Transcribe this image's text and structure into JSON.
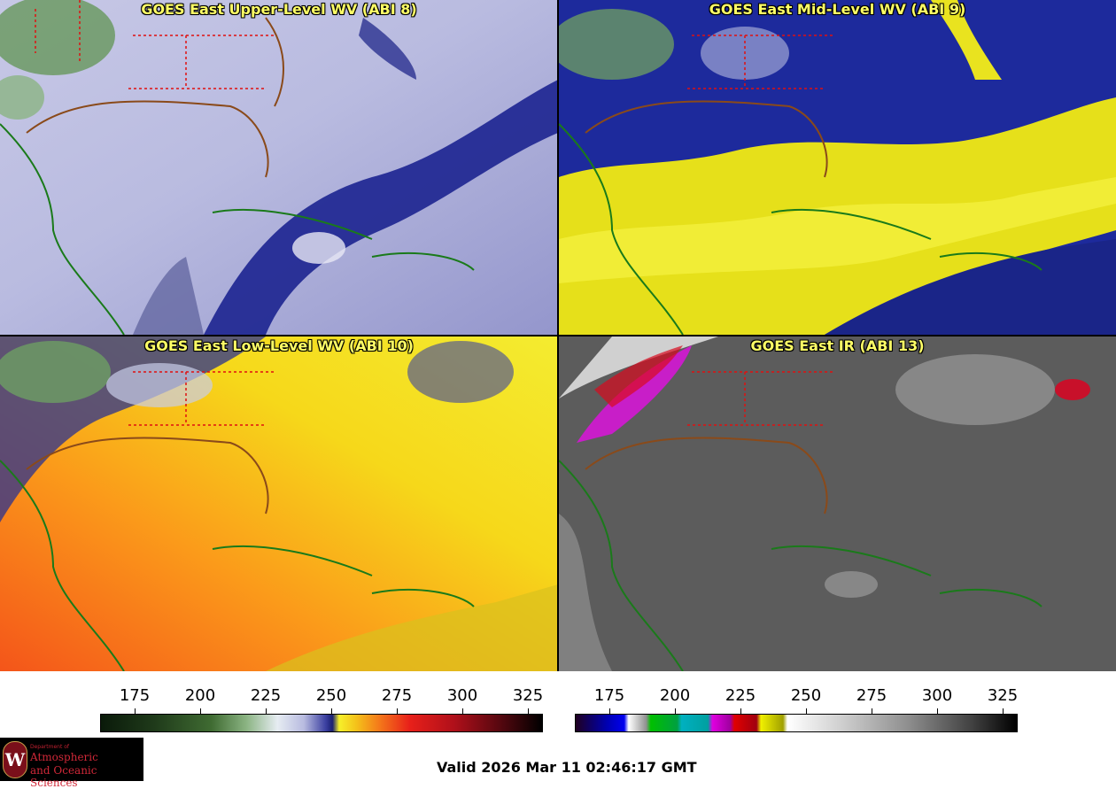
{
  "panels": [
    {
      "title": "GOES East Upper-Level WV (ABI 8)"
    },
    {
      "title": "GOES East Mid-Level WV (ABI 9)"
    },
    {
      "title": "GOES East Low-Level WV (ABI 10)"
    },
    {
      "title": "GOES East IR (ABI 13)"
    }
  ],
  "colorbars": [
    {
      "name": "water-vapor",
      "ticks": [
        "175",
        "200",
        "225",
        "250",
        "275",
        "300",
        "325"
      ]
    },
    {
      "name": "infrared",
      "ticks": [
        "175",
        "200",
        "225",
        "250",
        "275",
        "300",
        "325"
      ]
    }
  ],
  "logo": {
    "line1": "Department of",
    "line2": "Atmospheric",
    "line3": "and Oceanic Sciences"
  },
  "valid_text": "Valid 2026 Mar 11 02:46:17 GMT"
}
